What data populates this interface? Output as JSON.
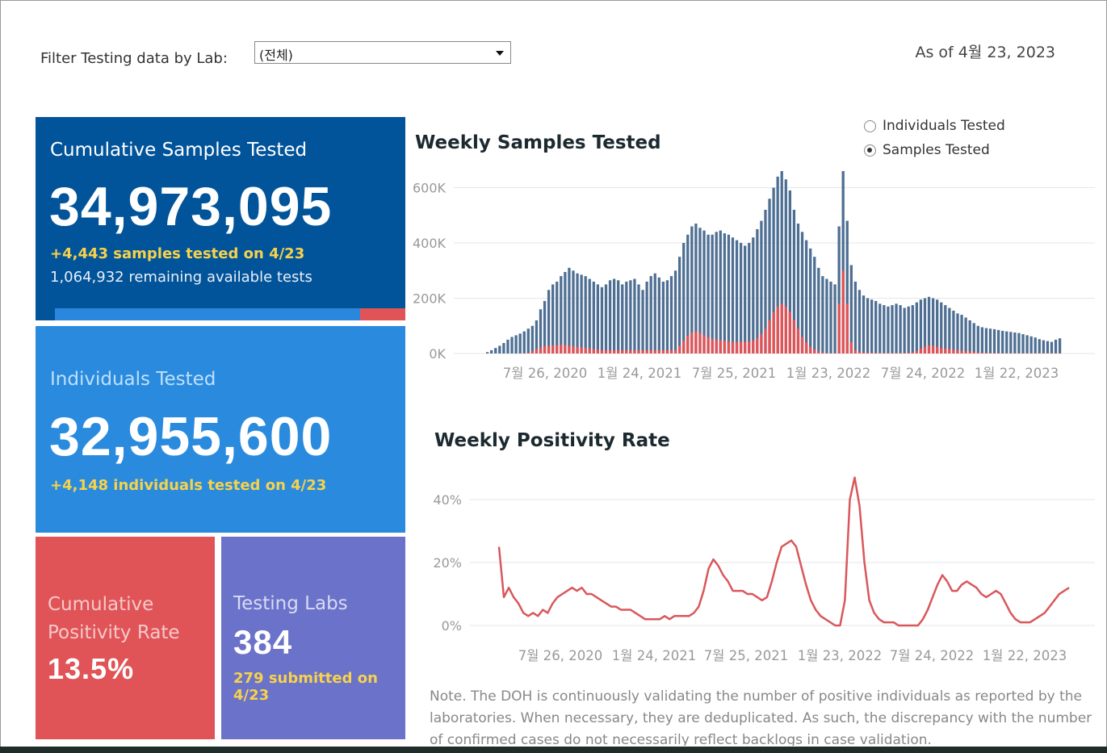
{
  "filter": {
    "label": "Filter Testing data by Lab:",
    "value": "(전체)"
  },
  "as_of": "As of 4월 23, 2023",
  "tiles": {
    "samples": {
      "title": "Cumulative Samples Tested",
      "value": "34,973,095",
      "delta": "+4,443 samples tested on 4/23",
      "remaining": "1,064,932 remaining available tests",
      "used_fraction": 0.87,
      "color": "#02549a"
    },
    "individuals": {
      "title": "Individuals Tested",
      "value": "32,955,600",
      "delta": "+4,148  individuals  tested on 4/23",
      "color": "#2a8bde"
    },
    "positivity": {
      "title_line1": "Cumulative",
      "title_line2": "Positivity Rate",
      "value": "13.5%",
      "color": "#e05458"
    },
    "labs": {
      "title": "Testing Labs",
      "value": "384",
      "delta": "279 submitted on 4/23",
      "color": "#6b72c9"
    }
  },
  "toggle": {
    "options": [
      "Individuals Tested",
      "Samples Tested"
    ],
    "selected": "Samples Tested"
  },
  "chart_data": [
    {
      "type": "bar",
      "title": "Weekly Samples Tested",
      "y_ticks": [
        "600K",
        "400K",
        "200K",
        "0K"
      ],
      "x_ticks": [
        "7월 26, 2020",
        "1월 24, 2021",
        "7월 25, 2021",
        "1월 23, 2022",
        "7월 24, 2022",
        "1월 22, 2023"
      ],
      "ylim": [
        0,
        660000
      ],
      "grid": true,
      "colors": {
        "total": "#4e6f93",
        "positive": "#e05458"
      },
      "series": [
        {
          "values": [
            5000,
            12000,
            20000,
            28000,
            38000,
            50000,
            60000,
            66000,
            72000,
            80000,
            90000,
            100000,
            120000,
            160000,
            190000,
            230000,
            250000,
            260000,
            280000,
            295000,
            310000,
            300000,
            290000,
            285000,
            280000,
            270000,
            260000,
            250000,
            240000,
            250000,
            265000,
            270000,
            265000,
            250000,
            260000,
            265000,
            270000,
            250000,
            230000,
            260000,
            280000,
            290000,
            275000,
            260000,
            265000,
            280000,
            300000,
            350000,
            400000,
            430000,
            460000,
            470000,
            455000,
            445000,
            430000,
            430000,
            440000,
            445000,
            435000,
            430000,
            420000,
            410000,
            400000,
            390000,
            400000,
            420000,
            450000,
            480000,
            520000,
            560000,
            600000,
            640000,
            660000,
            630000,
            590000,
            520000,
            470000,
            440000,
            410000,
            380000,
            350000,
            310000,
            280000,
            270000,
            260000,
            250000,
            460000,
            660000,
            480000,
            320000,
            260000,
            230000,
            210000,
            200000,
            195000,
            190000,
            180000,
            175000,
            170000,
            175000,
            180000,
            175000,
            165000,
            170000,
            175000,
            185000,
            195000,
            200000,
            205000,
            200000,
            195000,
            185000,
            175000,
            165000,
            155000,
            145000,
            140000,
            130000,
            120000,
            110000,
            100000,
            95000,
            92000,
            90000,
            88000,
            85000,
            82000,
            80000,
            78000,
            76000,
            74000,
            70000,
            66000,
            62000,
            58000,
            52000,
            48000,
            45000,
            42000,
            50000,
            55000
          ]
        },
        {
          "values": [
            0,
            0,
            0,
            0,
            0,
            0,
            0,
            0,
            0,
            1000,
            3000,
            8000,
            16000,
            22000,
            26000,
            28000,
            29000,
            30000,
            32000,
            30000,
            28000,
            26000,
            24000,
            22000,
            20000,
            18000,
            16000,
            14000,
            12000,
            12000,
            12000,
            12000,
            12000,
            12000,
            12000,
            12000,
            12000,
            12000,
            12000,
            12000,
            12000,
            12000,
            12000,
            12000,
            12000,
            12000,
            12000,
            28000,
            46000,
            64000,
            76000,
            80000,
            74000,
            66000,
            58000,
            52000,
            50000,
            48000,
            46000,
            44000,
            42000,
            42000,
            42000,
            42000,
            44000,
            48000,
            56000,
            70000,
            90000,
            120000,
            150000,
            170000,
            180000,
            170000,
            150000,
            120000,
            90000,
            60000,
            40000,
            24000,
            14000,
            8000,
            4000,
            2000,
            1000,
            1000,
            180000,
            300000,
            180000,
            40000,
            12000,
            6000,
            4000,
            3000,
            3000,
            2000,
            2000,
            2000,
            2000,
            2000,
            2000,
            2000,
            2000,
            3000,
            5000,
            9000,
            18000,
            24000,
            30000,
            28000,
            24000,
            20000,
            18000,
            16000,
            14000,
            12000,
            10000,
            8000,
            8000,
            6000,
            4000,
            3000,
            3000,
            2000,
            2000,
            2000,
            1000,
            1000,
            1000,
            1000,
            1000,
            1000,
            1000,
            1000,
            1000,
            1000,
            1000,
            1000,
            1000,
            1000,
            1000
          ]
        }
      ]
    },
    {
      "type": "line",
      "title": "Weekly Positivity Rate",
      "y_ticks": [
        "40%",
        "20%",
        "0%"
      ],
      "x_ticks": [
        "7월 26, 2020",
        "1월 24, 2021",
        "7월 25, 2021",
        "1월 23, 2022",
        "7월 24, 2022",
        "1월 22, 2023"
      ],
      "ylim": [
        0,
        50
      ],
      "grid": true,
      "colors": {
        "line": "#d9575b"
      },
      "values": [
        25,
        9,
        12,
        9,
        7,
        4,
        3,
        4,
        3,
        5,
        4,
        7,
        9,
        10,
        11,
        12,
        11,
        12,
        10,
        10,
        9,
        8,
        7,
        6,
        6,
        5,
        5,
        5,
        4,
        3,
        2,
        2,
        2,
        2,
        3,
        2,
        3,
        3,
        3,
        3,
        4,
        6,
        11,
        18,
        21,
        19,
        16,
        14,
        11,
        11,
        11,
        10,
        10,
        9,
        8,
        9,
        14,
        20,
        25,
        26,
        27,
        25,
        19,
        13,
        8,
        5,
        3,
        2,
        1,
        0,
        0,
        8,
        40,
        47,
        38,
        20,
        8,
        4,
        2,
        1,
        1,
        1,
        0,
        0,
        0,
        0,
        0,
        2,
        5,
        9,
        13,
        16,
        14,
        11,
        11,
        13,
        14,
        13,
        12,
        10,
        9,
        10,
        11,
        10,
        7,
        4,
        2,
        1,
        1,
        1,
        2,
        3,
        4,
        6,
        8,
        10,
        11,
        12
      ]
    }
  ],
  "note": "Note. The DOH is continuously validating the number of positive individuals as reported by the laboratories. When necessary, they are deduplicated. As such, the discrepancy with the number of confirmed cases do not necessarily reflect backlogs in case validation."
}
